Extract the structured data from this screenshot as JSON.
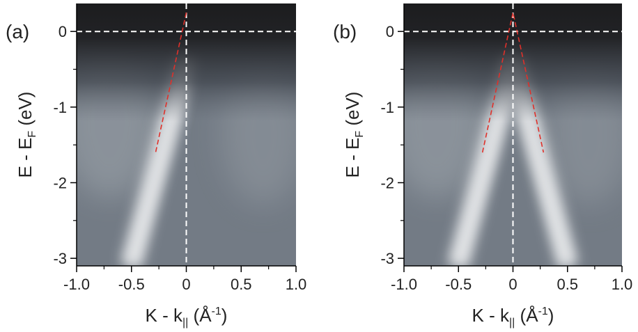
{
  "chart_data": [
    {
      "type": "heatmap",
      "panel_label": "(a)",
      "xlabel_parts": [
        "K - k",
        "||",
        " (Å",
        "-1",
        ")"
      ],
      "ylabel_parts": [
        "E - E",
        "F",
        " (eV)"
      ],
      "xlim": [
        -1,
        1
      ],
      "ylim": [
        -3.1,
        0.37
      ],
      "xticks": [
        {
          "value": -1,
          "label": "-1.0"
        },
        -0.5,
        0,
        0.5,
        {
          "value": 1,
          "label": "1.0"
        }
      ],
      "yticks": [
        0,
        -1,
        -2,
        -3
      ],
      "xminorticks": [
        -0.75,
        -0.25,
        0.25,
        0.75
      ],
      "yminorticks": [
        -0.5,
        -1.5,
        -2.5
      ],
      "hline": 0,
      "vline": 0,
      "fit_lines": [
        {
          "color": "#e0302a",
          "x": [
            0,
            -0.28
          ],
          "y": [
            0.25,
            -1.6
          ]
        }
      ]
    },
    {
      "type": "heatmap",
      "panel_label": "(b)",
      "xlabel_parts": [
        "K - k",
        "||",
        " (Å",
        "-1",
        ")"
      ],
      "ylabel_parts": [
        "E - E",
        "F",
        " (eV)"
      ],
      "xlim": [
        -1,
        1
      ],
      "ylim": [
        -3.1,
        0.37
      ],
      "xticks": [
        {
          "value": -1,
          "label": "-1.0"
        },
        -0.5,
        0,
        0.5,
        {
          "value": 1,
          "label": "1.0"
        }
      ],
      "yticks": [
        0,
        -1,
        -2,
        -3
      ],
      "xminorticks": [
        -0.75,
        -0.25,
        0.25,
        0.75
      ],
      "yminorticks": [
        -0.5,
        -1.5,
        -2.5
      ],
      "hline": 0,
      "vline": 0,
      "fit_lines": [
        {
          "color": "#e0302a",
          "x": [
            -0.28,
            0,
            0.28
          ],
          "y": [
            -1.6,
            0.25,
            -1.6
          ]
        }
      ]
    }
  ]
}
